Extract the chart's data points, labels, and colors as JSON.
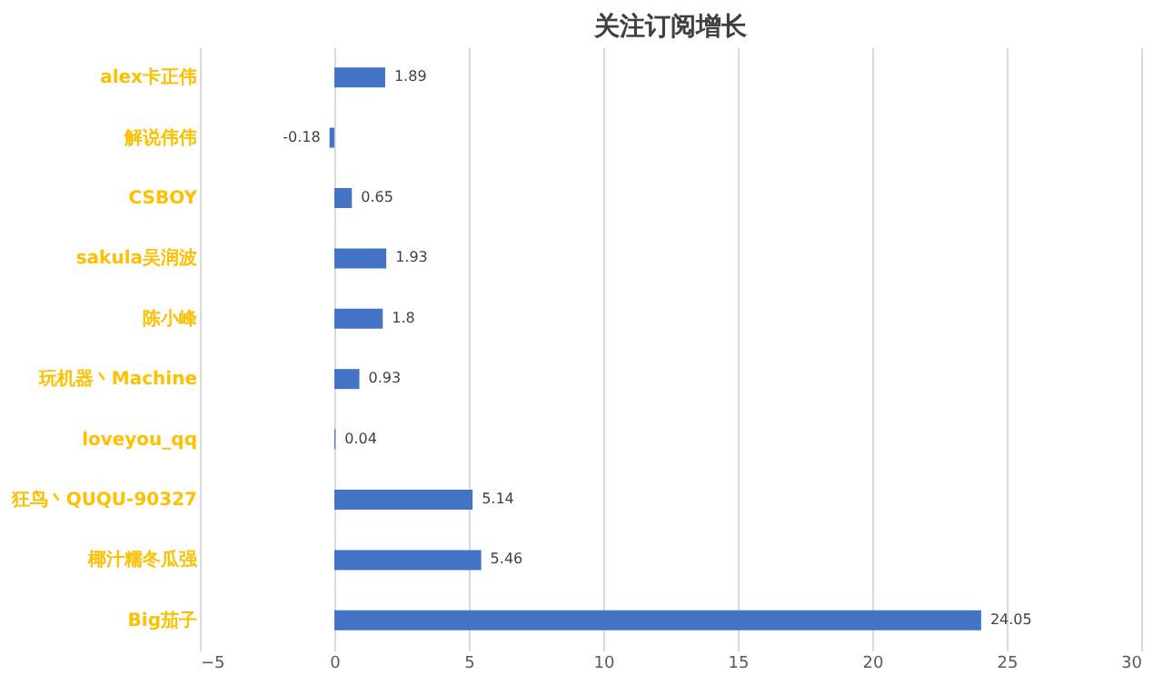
{
  "chart_data": {
    "type": "bar",
    "orientation": "horizontal",
    "title": "关注订阅增长",
    "categories": [
      "alex卡正伟",
      "解说伟伟",
      "CSBOY",
      "sakula吴润波",
      "陈小峰",
      "玩机器丶Machine",
      "loveyou_qq",
      "狂鸟丶QUQU-90327",
      "椰汁糯冬瓜强",
      "Big茄子"
    ],
    "values": [
      1.89,
      -0.18,
      0.65,
      1.93,
      1.8,
      0.93,
      0.04,
      5.14,
      5.46,
      24.05
    ],
    "color": "#4472c4",
    "xlim": [
      -5,
      30
    ],
    "xticks": [
      -5,
      0,
      5,
      10,
      15,
      20,
      25,
      30
    ],
    "grid": "x",
    "data_labels": true
  }
}
